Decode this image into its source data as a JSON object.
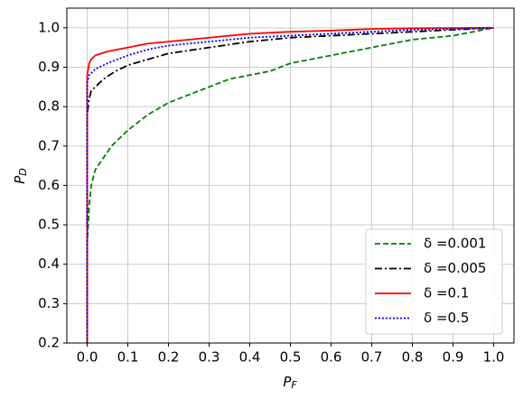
{
  "chart_data": {
    "type": "line",
    "xlabel": {
      "text": "P",
      "subscript": "F"
    },
    "ylabel": {
      "text": "P",
      "subscript": "D"
    },
    "xlim": [
      -0.05,
      1.05
    ],
    "ylim": [
      0.2,
      1.05
    ],
    "xticks": [
      {
        "value": 0,
        "label": "0.0"
      },
      0.1,
      0.2,
      0.3,
      0.4,
      0.5,
      0.6,
      0.7,
      0.8,
      0.9,
      {
        "value": 1,
        "label": "1.0"
      }
    ],
    "yticks": [
      0.2,
      0.3,
      0.4,
      0.5,
      0.6,
      0.7,
      0.8,
      0.9,
      {
        "value": 1,
        "label": "1.0"
      }
    ],
    "grid": true,
    "legend": "lower right",
    "series": [
      {
        "name": "δ =0.001",
        "color": "#008000",
        "linestyle": "dashed",
        "x": [
          0,
          0,
          0.005,
          0.01,
          0.02,
          0.04,
          0.06,
          0.08,
          0.1,
          0.15,
          0.2,
          0.25,
          0.3,
          0.35,
          0.4,
          0.45,
          0.5,
          0.55,
          0.6,
          0.65,
          0.7,
          0.8,
          0.9,
          1
        ],
        "values": [
          0.2,
          0.45,
          0.55,
          0.6,
          0.64,
          0.67,
          0.7,
          0.72,
          0.74,
          0.78,
          0.81,
          0.83,
          0.85,
          0.87,
          0.88,
          0.89,
          0.91,
          0.92,
          0.93,
          0.94,
          0.95,
          0.97,
          0.98,
          1
        ]
      },
      {
        "name": "δ =0.005",
        "color": "#000000",
        "linestyle": "dashdot",
        "x": [
          0,
          0,
          0.005,
          0.01,
          0.02,
          0.04,
          0.07,
          0.1,
          0.15,
          0.2,
          0.3,
          0.4,
          0.5,
          0.6,
          0.7,
          0.8,
          0.9,
          1
        ],
        "values": [
          0.2,
          0.78,
          0.82,
          0.84,
          0.85,
          0.87,
          0.89,
          0.905,
          0.92,
          0.935,
          0.95,
          0.965,
          0.975,
          0.98,
          0.985,
          0.99,
          0.995,
          1
        ]
      },
      {
        "name": "δ =0.1",
        "color": "#ff0000",
        "linestyle": "solid",
        "x": [
          0,
          0,
          0.005,
          0.01,
          0.02,
          0.05,
          0.1,
          0.15,
          0.2,
          0.3,
          0.4,
          0.5,
          0.6,
          0.7,
          0.8,
          1
        ],
        "values": [
          0.2,
          0.88,
          0.91,
          0.92,
          0.93,
          0.94,
          0.95,
          0.96,
          0.965,
          0.975,
          0.985,
          0.99,
          0.993,
          0.997,
          0.999,
          1
        ]
      },
      {
        "name": "δ =0.5",
        "color": "#0000ff",
        "linestyle": "dotted",
        "x": [
          0,
          0,
          0.005,
          0.02,
          0.05,
          0.1,
          0.15,
          0.2,
          0.3,
          0.4,
          0.5,
          0.6,
          0.7,
          0.8,
          0.9,
          1
        ],
        "values": [
          0.2,
          0.86,
          0.88,
          0.895,
          0.91,
          0.93,
          0.945,
          0.955,
          0.965,
          0.975,
          0.98,
          0.985,
          0.99,
          0.995,
          0.997,
          1
        ]
      }
    ]
  }
}
